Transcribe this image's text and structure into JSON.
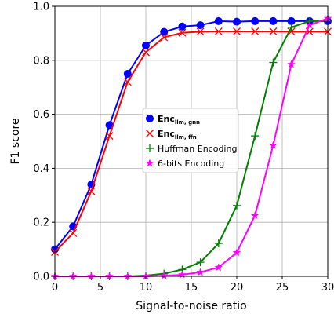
{
  "chart_data": {
    "type": "line",
    "xlabel": "Signal-to-noise ratio",
    "ylabel": "F1 score",
    "xlim": [
      0,
      30
    ],
    "ylim": [
      0,
      1.0
    ],
    "xticks": [
      0,
      5,
      10,
      15,
      20,
      25,
      30
    ],
    "yticks": [
      0.0,
      0.2,
      0.4,
      0.6,
      0.8,
      1.0
    ],
    "xtick_labels": [
      "0",
      "5",
      "10",
      "15",
      "20",
      "25",
      "30"
    ],
    "ytick_labels": [
      "0.0",
      "0.2",
      "0.4",
      "0.6",
      "0.8",
      "1.0"
    ],
    "grid": true,
    "legend_position": "center",
    "x": [
      0,
      2,
      4,
      6,
      8,
      10,
      12,
      14,
      16,
      18,
      20,
      22,
      24,
      26,
      28,
      30
    ],
    "series": [
      {
        "name": "Enc",
        "name_sub": "llm, gnn",
        "bold": true,
        "color": "#0000ff",
        "marker": "circle",
        "values": [
          0.1,
          0.185,
          0.34,
          0.56,
          0.75,
          0.855,
          0.905,
          0.925,
          0.93,
          0.945,
          0.943,
          0.945,
          0.945,
          0.945,
          0.945,
          0.945
        ]
      },
      {
        "name": "Enc",
        "name_sub": "llm, ffn",
        "bold": true,
        "color": "#ff0000",
        "marker": "x",
        "values": [
          0.09,
          0.16,
          0.315,
          0.52,
          0.72,
          0.83,
          0.885,
          0.902,
          0.906,
          0.907,
          0.907,
          0.907,
          0.907,
          0.906,
          0.906,
          0.906
        ]
      },
      {
        "name": "Huffman Encoding",
        "name_sub": "",
        "bold": false,
        "color": "#008000",
        "marker": "plus",
        "values": [
          0.0,
          0.0,
          0.0,
          0.0,
          0.0,
          0.003,
          0.01,
          0.025,
          0.052,
          0.122,
          0.262,
          0.52,
          0.792,
          0.922,
          0.945,
          0.948
        ]
      },
      {
        "name": "6-bits Encoding",
        "name_sub": "",
        "bold": false,
        "color": "#ff00ff",
        "marker": "star",
        "values": [
          0.0,
          0.0,
          0.0,
          0.0,
          0.0,
          0.0,
          0.002,
          0.006,
          0.015,
          0.033,
          0.088,
          0.225,
          0.485,
          0.785,
          0.93,
          0.955
        ]
      }
    ]
  }
}
